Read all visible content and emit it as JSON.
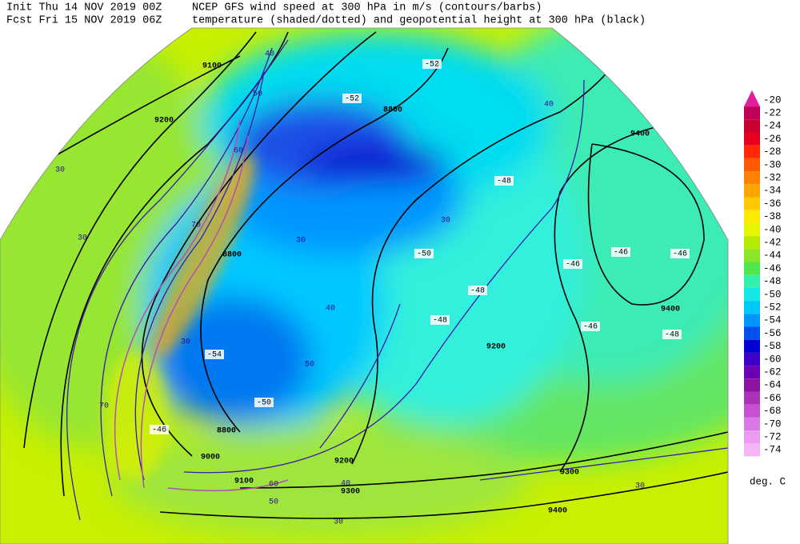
{
  "header": {
    "init": "Init  Thu 14 NOV 2019 00Z",
    "forecast": "Fcst Fri 15 NOV 2019 06Z",
    "title_line_1": "NCEP GFS wind speed at 300 hPa in m/s (contours/barbs)",
    "title_line_2": "temperature (shaded/dotted) and geopotential height at 300 hPa (black)"
  },
  "colorbar": {
    "unit": "deg. C",
    "levels": [
      -20,
      -22,
      -24,
      -26,
      -28,
      -30,
      -32,
      -34,
      -36,
      -38,
      -40,
      -42,
      -44,
      -46,
      -48,
      -50,
      -52,
      -54,
      -56,
      -58,
      -60,
      -62,
      -64,
      -66,
      -68,
      -70,
      -72,
      -74
    ],
    "colors": [
      "#e0209a",
      "#c0005a",
      "#c80032",
      "#e6001e",
      "#ff2800",
      "#ff5a00",
      "#ff8200",
      "#ffa500",
      "#ffc800",
      "#ffeb00",
      "#e6f500",
      "#b4eb00",
      "#8ce628",
      "#50e650",
      "#32f0aa",
      "#14e6e6",
      "#00c8ff",
      "#0096ff",
      "#0050f0",
      "#0000d2",
      "#3c00c8",
      "#6e00b4",
      "#8c14a0",
      "#aa32b4",
      "#c850d2",
      "#dc78e6",
      "#eb9bf0",
      "#f5b4f5"
    ]
  },
  "map_labels": {
    "height": [
      "9100",
      "9200",
      "9400",
      "8800",
      "8800",
      "9200",
      "9400",
      "8800",
      "9000",
      "9100",
      "9200",
      "9300",
      "9300",
      "9400"
    ],
    "wind": [
      "30",
      "30",
      "40",
      "50",
      "60",
      "70",
      "40",
      "30",
      "30",
      "40",
      "30",
      "50",
      "70",
      "60",
      "50",
      "40",
      "30",
      "30"
    ],
    "temperature": [
      "-52",
      "-52",
      "-48",
      "-50",
      "-46",
      "-48",
      "-48",
      "-46",
      "-48",
      "-46",
      "-54",
      "-50",
      "-46",
      "-46"
    ]
  }
}
